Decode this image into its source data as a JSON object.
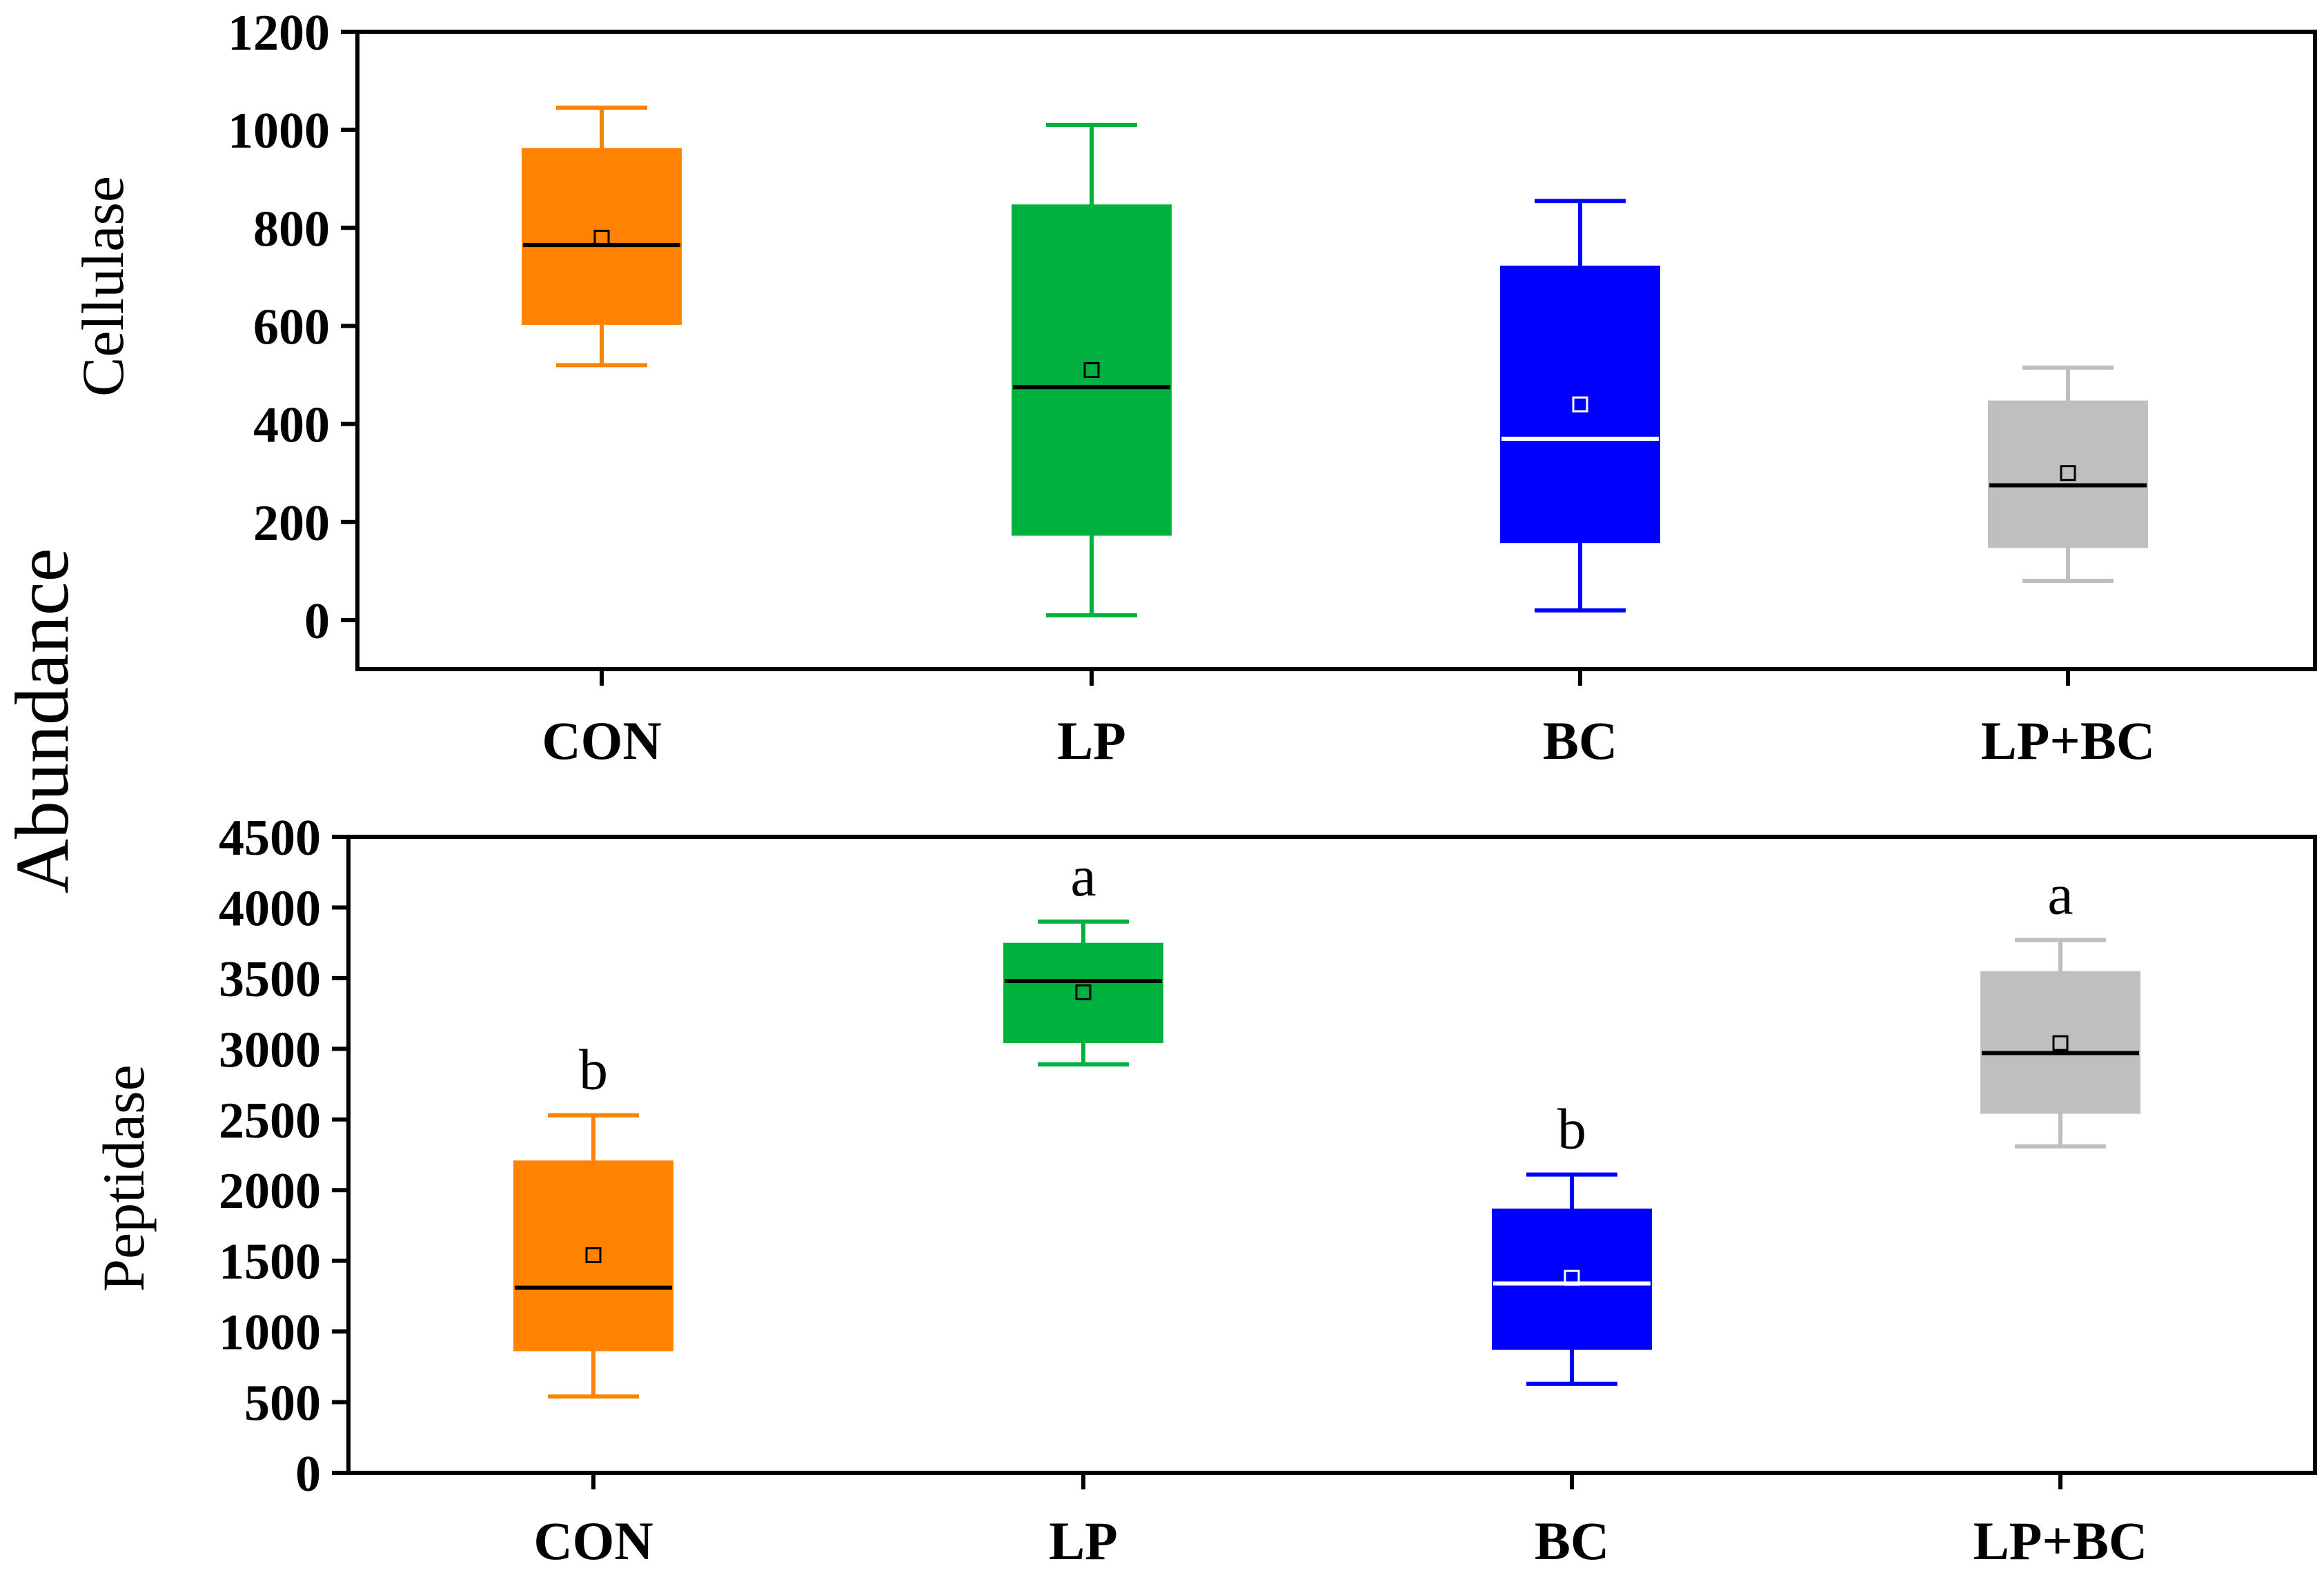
{
  "y_label": "Abundance",
  "colors": {
    "CON": "#ff8200",
    "LP": "#00b140",
    "BC": "#0000ff",
    "LP+BC": "#bfbfbf",
    "axis": "#000000"
  },
  "chart_data": [
    {
      "type": "box",
      "ylabel": "Cellulase",
      "ylim": [
        -100,
        1200
      ],
      "yticks": [
        0,
        200,
        400,
        600,
        800,
        1000,
        1200
      ],
      "categories": [
        "CON",
        "LP",
        "BC",
        "LP+BC"
      ],
      "boxes": [
        {
          "category": "CON",
          "min": 520,
          "q1": 605,
          "median": 765,
          "q3": 960,
          "max": 1045,
          "mean": 780,
          "median_line": "black",
          "sig": ""
        },
        {
          "category": "LP",
          "min": 10,
          "q1": 175,
          "median": 475,
          "q3": 845,
          "max": 1010,
          "mean": 510,
          "median_line": "black",
          "sig": ""
        },
        {
          "category": "BC",
          "min": 20,
          "q1": 160,
          "median": 370,
          "q3": 720,
          "max": 855,
          "mean": 440,
          "median_line": "white",
          "sig": ""
        },
        {
          "category": "LP+BC",
          "min": 80,
          "q1": 150,
          "median": 275,
          "q3": 445,
          "max": 515,
          "mean": 300,
          "median_line": "black",
          "sig": ""
        }
      ]
    },
    {
      "type": "box",
      "ylabel": "Peptidase",
      "ylim": [
        0,
        4500
      ],
      "yticks": [
        0,
        500,
        1000,
        1500,
        2000,
        2500,
        3000,
        3500,
        4000,
        4500
      ],
      "categories": [
        "CON",
        "LP",
        "BC",
        "LP+BC"
      ],
      "boxes": [
        {
          "category": "CON",
          "min": 540,
          "q1": 870,
          "median": 1310,
          "q3": 2200,
          "max": 2530,
          "mean": 1540,
          "median_line": "black",
          "sig": "b"
        },
        {
          "category": "LP",
          "min": 2890,
          "q1": 3050,
          "median": 3480,
          "q3": 3740,
          "max": 3900,
          "mean": 3400,
          "median_line": "black",
          "sig": "a"
        },
        {
          "category": "BC",
          "min": 630,
          "q1": 880,
          "median": 1340,
          "q3": 1860,
          "max": 2110,
          "mean": 1380,
          "median_line": "white",
          "sig": "b"
        },
        {
          "category": "LP+BC",
          "min": 2310,
          "q1": 2550,
          "median": 2970,
          "q3": 3540,
          "max": 3770,
          "mean": 3040,
          "median_line": "black",
          "sig": "a"
        }
      ]
    }
  ]
}
